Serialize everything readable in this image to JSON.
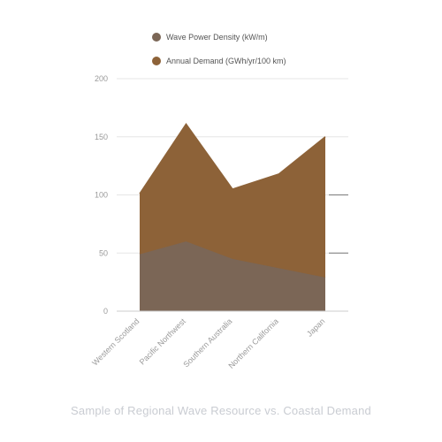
{
  "chart_data": {
    "type": "area",
    "stacked": true,
    "title": "Sample of Regional Wave Resource vs. Coastal Demand",
    "categories": [
      "Western Scotland",
      "Pacific Northwest",
      "Southern Australia",
      "Northern California",
      "Japan"
    ],
    "series": [
      {
        "name": "Wave Power Density (kW/m)",
        "values": [
          49,
          60,
          45,
          37,
          29
        ],
        "color": "#7b6656"
      },
      {
        "name": "Annual Demand (GWh/yr/100 km)",
        "values": [
          52,
          101,
          60,
          81,
          121
        ],
        "color": "#8d6238"
      }
    ],
    "ylim": [
      0,
      200
    ],
    "yticks": [
      0,
      50,
      100,
      150,
      200
    ],
    "grid": true,
    "legend": "top"
  }
}
